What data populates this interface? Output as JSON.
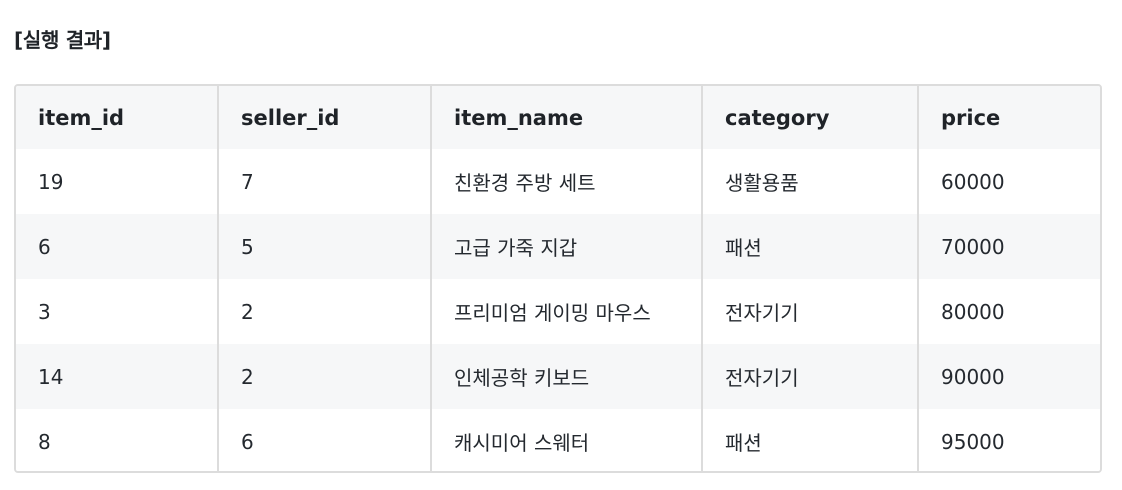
{
  "heading": "[실행 결과]",
  "table": {
    "columns": [
      "item_id",
      "seller_id",
      "item_name",
      "category",
      "price"
    ],
    "rows": [
      [
        "19",
        "7",
        "친환경 주방 세트",
        "생활용품",
        "60000"
      ],
      [
        "6",
        "5",
        "고급 가죽 지갑",
        "패션",
        "70000"
      ],
      [
        "3",
        "2",
        "프리미엄 게이밍 마우스",
        "전자기기",
        "80000"
      ],
      [
        "14",
        "2",
        "인체공학 키보드",
        "전자기기",
        "90000"
      ],
      [
        "8",
        "6",
        "캐시미어 스웨터",
        "패션",
        "95000"
      ]
    ]
  }
}
